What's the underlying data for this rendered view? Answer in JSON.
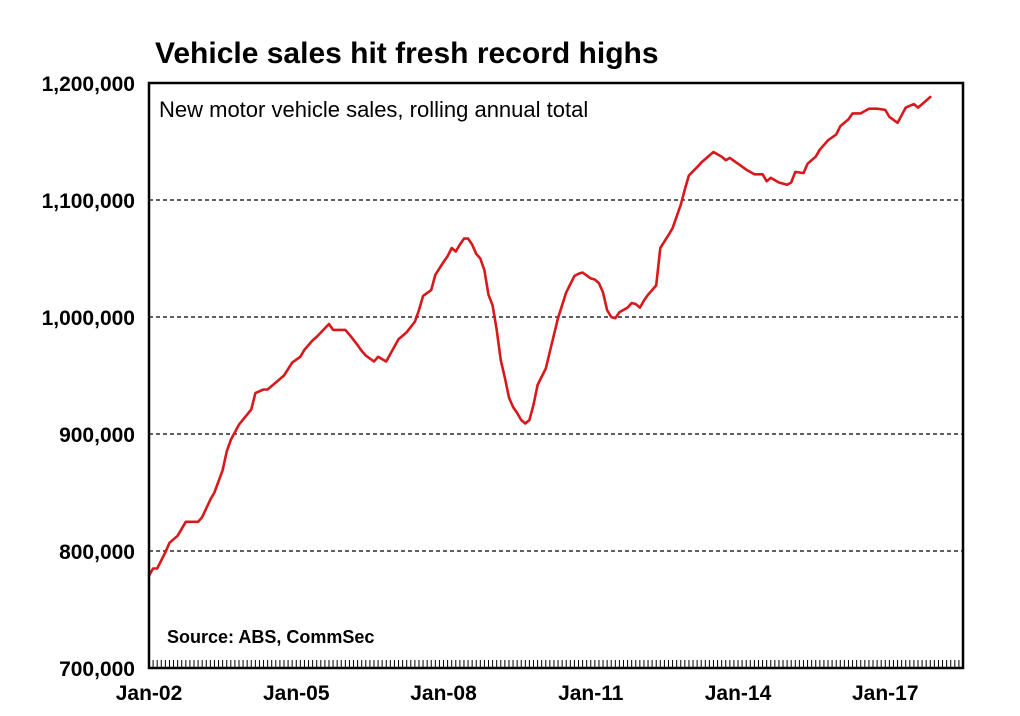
{
  "chart_data": {
    "type": "line",
    "title": "Vehicle sales hit fresh record highs",
    "subtitle": "New motor vehicle sales, rolling annual total",
    "source": "Source:  ABS, CommSec",
    "xlabel": "",
    "ylabel": "",
    "x_start": "2002-01",
    "x_end": "2018-08",
    "xticks": [
      {
        "label": "Jan-02",
        "month_index": 0
      },
      {
        "label": "Jan-05",
        "month_index": 36
      },
      {
        "label": "Jan-08",
        "month_index": 72
      },
      {
        "label": "Jan-11",
        "month_index": 108
      },
      {
        "label": "Jan-14",
        "month_index": 144
      },
      {
        "label": "Jan-17",
        "month_index": 180
      }
    ],
    "x_range_months": [
      0,
      199
    ],
    "x_minor_ticks": "monthly",
    "ylim": [
      700000,
      1200000
    ],
    "yticks": [
      {
        "label": "1,200,000",
        "value": 1200000
      },
      {
        "label": "1,100,000",
        "value": 1100000
      },
      {
        "label": "1,000,000",
        "value": 1000000
      },
      {
        "label": "900,000",
        "value": 900000
      },
      {
        "label": "800,000",
        "value": 800000
      },
      {
        "label": "700,000",
        "value": 700000
      }
    ],
    "grid": {
      "horizontal": true,
      "style": "dashed",
      "values": [
        800000,
        900000,
        1000000,
        1100000
      ]
    },
    "legend": "none",
    "series": [
      {
        "name": "New motor vehicle sales, rolling annual total",
        "color": "#d7191c",
        "x_unit": "months since Jan-2002",
        "points": [
          [
            0,
            779000
          ],
          [
            1,
            785000
          ],
          [
            2,
            785000
          ],
          [
            4,
            799000
          ],
          [
            5,
            807000
          ],
          [
            7,
            813000
          ],
          [
            9,
            825000
          ],
          [
            12,
            825000
          ],
          [
            13,
            829000
          ],
          [
            15,
            844000
          ],
          [
            16,
            850000
          ],
          [
            18,
            869000
          ],
          [
            19,
            885000
          ],
          [
            20,
            895000
          ],
          [
            22,
            908000
          ],
          [
            25,
            921000
          ],
          [
            26,
            935000
          ],
          [
            28,
            938000
          ],
          [
            29,
            938000
          ],
          [
            31,
            944000
          ],
          [
            33,
            950000
          ],
          [
            35,
            961000
          ],
          [
            37,
            966000
          ],
          [
            38,
            972000
          ],
          [
            40,
            980000
          ],
          [
            41,
            983000
          ],
          [
            44,
            994000
          ],
          [
            45,
            989000
          ],
          [
            48,
            989000
          ],
          [
            49,
            985000
          ],
          [
            51,
            976000
          ],
          [
            52,
            971000
          ],
          [
            53,
            967000
          ],
          [
            55,
            962000
          ],
          [
            56,
            966000
          ],
          [
            58,
            962000
          ],
          [
            61,
            981000
          ],
          [
            63,
            987000
          ],
          [
            65,
            996000
          ],
          [
            66,
            1006000
          ],
          [
            67,
            1018000
          ],
          [
            69,
            1023000
          ],
          [
            70,
            1036000
          ],
          [
            72,
            1047000
          ],
          [
            73,
            1052000
          ],
          [
            74,
            1059000
          ],
          [
            75,
            1056000
          ],
          [
            76,
            1062000
          ],
          [
            77,
            1067000
          ],
          [
            78,
            1067000
          ],
          [
            79,
            1062000
          ],
          [
            80,
            1054000
          ],
          [
            81,
            1050000
          ],
          [
            82,
            1040000
          ],
          [
            83,
            1019000
          ],
          [
            84,
            1010000
          ],
          [
            85,
            989000
          ],
          [
            86,
            963000
          ],
          [
            87,
            948000
          ],
          [
            88,
            931000
          ],
          [
            89,
            923000
          ],
          [
            90,
            918000
          ],
          [
            91,
            912000
          ],
          [
            92,
            909000
          ],
          [
            93,
            912000
          ],
          [
            94,
            925000
          ],
          [
            95,
            942000
          ],
          [
            97,
            956000
          ],
          [
            99,
            985000
          ],
          [
            100,
            999000
          ],
          [
            101,
            1010000
          ],
          [
            102,
            1021000
          ],
          [
            104,
            1035000
          ],
          [
            105,
            1037000
          ],
          [
            106,
            1038000
          ],
          [
            108,
            1033000
          ],
          [
            109,
            1032000
          ],
          [
            110,
            1029000
          ],
          [
            111,
            1021000
          ],
          [
            112,
            1006000
          ],
          [
            113,
            1000000
          ],
          [
            114,
            999000
          ],
          [
            115,
            1004000
          ],
          [
            117,
            1008000
          ],
          [
            118,
            1012000
          ],
          [
            119,
            1011000
          ],
          [
            120,
            1008000
          ],
          [
            121,
            1014000
          ],
          [
            122,
            1019000
          ],
          [
            123,
            1023000
          ],
          [
            124,
            1027000
          ],
          [
            125,
            1059000
          ],
          [
            127,
            1070000
          ],
          [
            128,
            1076000
          ],
          [
            130,
            1096000
          ],
          [
            131,
            1109000
          ],
          [
            132,
            1121000
          ],
          [
            134,
            1128000
          ],
          [
            135,
            1132000
          ],
          [
            137,
            1138000
          ],
          [
            138,
            1141000
          ],
          [
            140,
            1137000
          ],
          [
            141,
            1134000
          ],
          [
            142,
            1136000
          ],
          [
            144,
            1131000
          ],
          [
            146,
            1126000
          ],
          [
            148,
            1122000
          ],
          [
            150,
            1122000
          ],
          [
            151,
            1116000
          ],
          [
            152,
            1119000
          ],
          [
            154,
            1115000
          ],
          [
            156,
            1113000
          ],
          [
            157,
            1115000
          ],
          [
            158,
            1124000
          ],
          [
            160,
            1123000
          ],
          [
            161,
            1131000
          ],
          [
            163,
            1137000
          ],
          [
            164,
            1143000
          ],
          [
            166,
            1151000
          ],
          [
            168,
            1156000
          ],
          [
            169,
            1163000
          ],
          [
            171,
            1169000
          ],
          [
            172,
            1174000
          ],
          [
            174,
            1174000
          ],
          [
            176,
            1178000
          ],
          [
            178,
            1178000
          ],
          [
            180,
            1177000
          ],
          [
            181,
            1171000
          ],
          [
            183,
            1166000
          ],
          [
            185,
            1179000
          ],
          [
            187,
            1182000
          ],
          [
            188,
            1179000
          ],
          [
            189,
            1182000
          ],
          [
            191,
            1188000
          ]
        ]
      }
    ]
  }
}
